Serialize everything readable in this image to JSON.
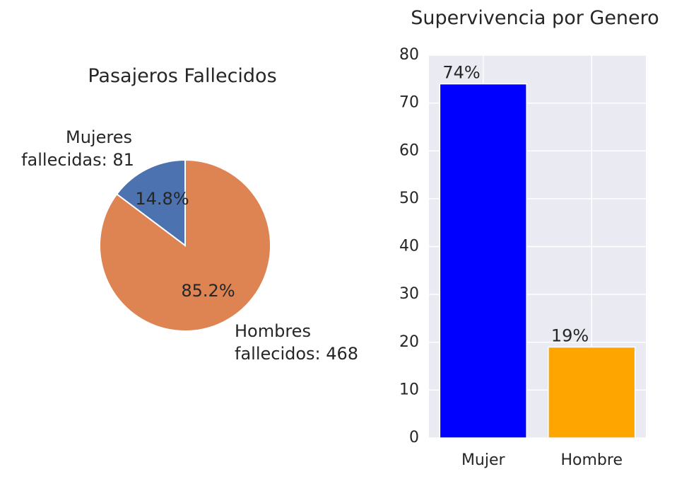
{
  "chart_data": [
    {
      "type": "pie",
      "title": "Pasajeros Fallecidos",
      "slices": [
        {
          "label_line1": "Mujeres",
          "label_line2": "fallecidas: 81",
          "value": 81,
          "pct_label": "14.8%",
          "color": "#4c72b0"
        },
        {
          "label_line1": "Hombres",
          "label_line2": "fallecidos: 468",
          "value": 468,
          "pct_label": "85.2%",
          "color": "#dd8452"
        }
      ]
    },
    {
      "type": "bar",
      "title": "Supervivencia por Genero",
      "categories": [
        "Mujer",
        "Hombre"
      ],
      "values": [
        74,
        19
      ],
      "data_labels": [
        "74%",
        "19%"
      ],
      "colors": [
        "#0000ff",
        "#ffa500"
      ],
      "ylim": [
        0,
        80
      ],
      "yticks": [
        "0",
        "10",
        "20",
        "30",
        "40",
        "50",
        "60",
        "70",
        "80"
      ],
      "grid": true,
      "background": "#eaeaf2"
    }
  ]
}
